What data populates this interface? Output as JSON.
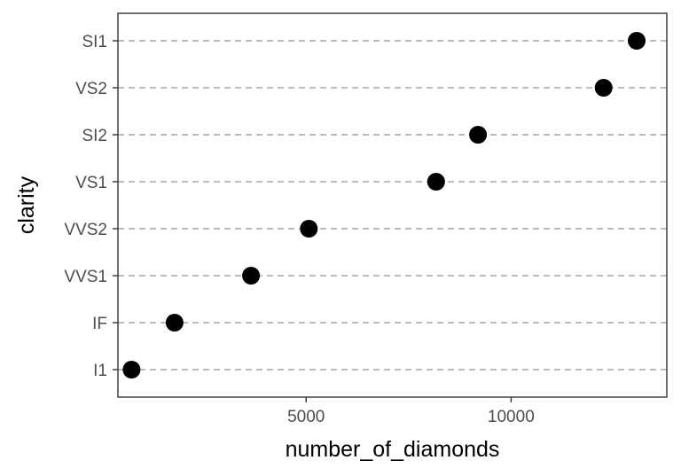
{
  "chart_data": {
    "type": "scatter",
    "title": "",
    "xlabel": "number_of_diamonds",
    "ylabel": "clarity",
    "xlim": [
      408,
      13800
    ],
    "x_ticks": [
      5000,
      10000
    ],
    "categories": [
      "I1",
      "IF",
      "VVS1",
      "VVS2",
      "VS1",
      "SI2",
      "VS2",
      "SI1"
    ],
    "values": [
      741,
      1790,
      3655,
      5066,
      8171,
      9194,
      12258,
      13065
    ],
    "grid": {
      "horizontal_major": "dashed",
      "vertical": false
    },
    "legend": "none",
    "colors": {
      "point": "#000000",
      "grid": "#a6a6a6",
      "panel_border": "#333333",
      "tick_text": "#4d4d4d"
    }
  }
}
